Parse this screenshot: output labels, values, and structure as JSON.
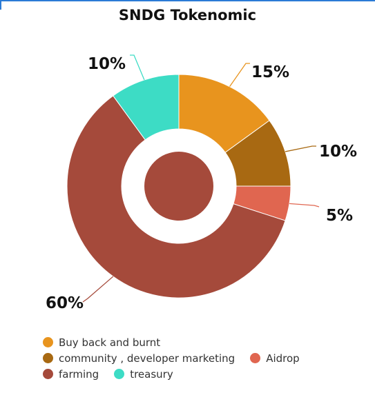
{
  "chart_data": {
    "type": "pie",
    "title": "SNDG Tokenomic",
    "categories": [
      "Buy back and burnt",
      "community , developer marketing",
      "Aidrop",
      "farming",
      "treasury"
    ],
    "values": [
      15,
      10,
      5,
      60,
      10
    ],
    "data_labels": [
      "15%",
      "10%",
      "5%",
      "60%",
      "10%"
    ],
    "colors": [
      "#e8941e",
      "#a86912",
      "#e06650",
      "#a54a3b",
      "#3ddcc5"
    ],
    "donut": true,
    "legend_position": "bottom"
  }
}
